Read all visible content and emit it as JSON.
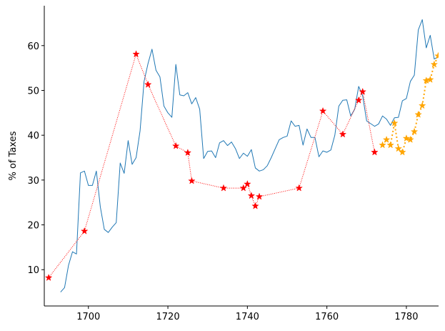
{
  "chart_data": {
    "type": "line",
    "y_label": "% of Taxes",
    "xlim": [
      1688.9,
      1788.1
    ],
    "ylim": [
      1.9,
      68.9
    ],
    "xticks": [
      1700,
      1720,
      1740,
      1760,
      1780
    ],
    "yticks": [
      10,
      20,
      30,
      40,
      50,
      60
    ],
    "series": [
      {
        "color": "#1f77b4",
        "linestyle": "solid",
        "linewidth": 1,
        "marker": "none",
        "x": [
          1693,
          1694,
          1695,
          1696,
          1697,
          1698,
          1699,
          1700,
          1701,
          1702,
          1703,
          1704,
          1705,
          1706,
          1707,
          1708,
          1709,
          1710,
          1711,
          1712,
          1713,
          1714,
          1715,
          1716,
          1717,
          1718,
          1719,
          1720,
          1721,
          1722,
          1723,
          1724,
          1725,
          1726,
          1727,
          1728,
          1729,
          1730,
          1731,
          1732,
          1733,
          1734,
          1735,
          1736,
          1737,
          1738,
          1739,
          1740,
          1741,
          1742,
          1743,
          1744,
          1745,
          1746,
          1747,
          1748,
          1749,
          1750,
          1751,
          1752,
          1753,
          1754,
          1755,
          1756,
          1757,
          1758,
          1759,
          1760,
          1761,
          1762,
          1763,
          1764,
          1765,
          1766,
          1767,
          1768,
          1769,
          1770,
          1771,
          1772,
          1773,
          1774,
          1775,
          1776,
          1777,
          1778,
          1779,
          1780,
          1781,
          1782,
          1783,
          1784,
          1785,
          1786,
          1787,
          1788
        ],
        "values": [
          5,
          6,
          11,
          14,
          13.5,
          31.6,
          32,
          28.8,
          28.8,
          32,
          24,
          19,
          18.3,
          19.5,
          20.5,
          33.8,
          31.5,
          38.8,
          33.5,
          35,
          41,
          52,
          56,
          59.2,
          54.5,
          53,
          46.5,
          45,
          44,
          55.8,
          49,
          48.8,
          49.5,
          47,
          48.4,
          45.8,
          34.8,
          36.4,
          36.5,
          35,
          38.3,
          38.8,
          37.7,
          38.5,
          37,
          34.8,
          36,
          35.3,
          36.8,
          32.7,
          32,
          32.3,
          33.2,
          35,
          37,
          39,
          39.5,
          39.8,
          43.2,
          42,
          42.2,
          37.8,
          41.4,
          39.5,
          39.5,
          35.2,
          36.5,
          36.2,
          36.7,
          40,
          46.5,
          47.8,
          47.9,
          44.3,
          45.8,
          50.9,
          48.8,
          43.2,
          42.6,
          42,
          42.5,
          44.3,
          43.6,
          42.2,
          43.9,
          44,
          47.7,
          48.2,
          52,
          53.4,
          63.5,
          65.8,
          59.5,
          62.3,
          57,
          57.5
        ]
      },
      {
        "color": "#ff0000",
        "linestyle": "dotted",
        "linewidth": 1,
        "marker": "star",
        "x": [
          1690,
          1699,
          1712,
          1715,
          1722,
          1725,
          1726,
          1734,
          1739,
          1740,
          1741,
          1742,
          1743,
          1753,
          1759,
          1764,
          1768,
          1769,
          1772
        ],
        "values": [
          8.2,
          18.6,
          58.1,
          51.3,
          37.6,
          36.1,
          29.8,
          28.2,
          28.2,
          29.1,
          26.5,
          24.2,
          26.3,
          28.2,
          45.4,
          40.2,
          47.8,
          49.7,
          36.2
        ]
      },
      {
        "color": "#ffa500",
        "linestyle": "dotted",
        "linewidth": 2,
        "marker": "star",
        "x": [
          1774,
          1775,
          1776,
          1777,
          1778,
          1779,
          1780,
          1781,
          1782,
          1783,
          1784,
          1785,
          1786,
          1787,
          1788
        ],
        "values": [
          37.8,
          39,
          37.8,
          42.7,
          37,
          36.2,
          39.3,
          39,
          40.8,
          44.6,
          46.6,
          52.2,
          52.4,
          55.8,
          57.7
        ]
      }
    ]
  }
}
